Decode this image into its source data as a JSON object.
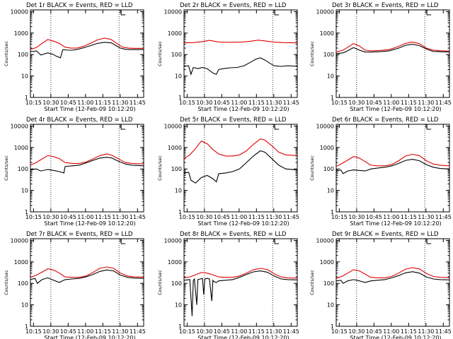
{
  "chart_data": {
    "type": "line",
    "figure": "3x3 grid of detector count-rate time series",
    "title_template": "BLACK = Events, RED = LLD",
    "xlabel": "Start Time (12-Feb-09 10:12:20)",
    "ylabel": "Counts/sec",
    "xticks": [
      "10:15",
      "10:30",
      "10:45",
      "11:00",
      "11:15",
      "11:30",
      "11:45"
    ],
    "xlim_minutes_after_10_12_20": [
      0,
      98
    ],
    "yscale": "log",
    "ylim": [
      1,
      12000
    ],
    "yticks": [
      "1",
      "10",
      "100",
      "1000",
      "10000"
    ],
    "vertical_dotted_lines": [
      "10:30",
      "11:29"
    ],
    "colors": {
      "events": "#000000",
      "lld": "#e00000"
    },
    "series_names": [
      "Events",
      "LLD"
    ],
    "panels": [
      {
        "name": "Det 1r",
        "title": "Det 1r BLACK = Events, RED = LLD",
        "events": {
          "t": [
            0,
            4,
            5,
            9,
            15,
            20,
            22,
            26,
            28,
            32,
            36,
            40,
            45,
            52,
            58,
            64,
            70,
            74,
            78,
            82,
            86,
            90,
            98
          ],
          "y": [
            140,
            140,
            150,
            95,
            120,
            100,
            85,
            70,
            170,
            160,
            160,
            170,
            200,
            260,
            330,
            370,
            350,
            260,
            200,
            175,
            170,
            170,
            170
          ]
        },
        "lld": {
          "t": [
            0,
            5,
            10,
            15,
            20,
            25,
            30,
            35,
            40,
            45,
            52,
            58,
            64,
            70,
            75,
            80,
            85,
            90,
            98
          ],
          "y": [
            175,
            210,
            330,
            500,
            420,
            330,
            220,
            200,
            200,
            230,
            330,
            480,
            580,
            500,
            320,
            220,
            200,
            195,
            195
          ]
        }
      },
      {
        "name": "Det 2r",
        "title": "Det 2r BLACK = Events, RED = LLD",
        "events": {
          "t": [
            0,
            4,
            6,
            8,
            12,
            16,
            20,
            24,
            26,
            28,
            30,
            34,
            40,
            46,
            52,
            58,
            62,
            66,
            70,
            74,
            78,
            84,
            90,
            98
          ],
          "y": [
            28,
            30,
            12,
            25,
            22,
            25,
            22,
            15,
            13,
            12,
            20,
            22,
            24,
            25,
            30,
            45,
            60,
            70,
            55,
            40,
            30,
            28,
            30,
            28
          ]
        },
        "lld": {
          "t": [
            0,
            8,
            16,
            22,
            30,
            40,
            50,
            58,
            64,
            70,
            78,
            86,
            98
          ],
          "y": [
            350,
            360,
            400,
            460,
            380,
            370,
            380,
            420,
            470,
            430,
            380,
            360,
            350
          ]
        }
      },
      {
        "name": "Det 3r",
        "title": "Det 3r BLACK = Events, RED = LLD",
        "events": {
          "t": [
            0,
            6,
            10,
            15,
            20,
            25,
            30,
            38,
            46,
            54,
            60,
            66,
            72,
            78,
            84,
            90,
            98
          ],
          "y": [
            110,
            120,
            150,
            210,
            160,
            130,
            130,
            135,
            150,
            200,
            270,
            300,
            260,
            180,
            140,
            135,
            130
          ]
        },
        "lld": {
          "t": [
            0,
            6,
            10,
            15,
            20,
            25,
            30,
            38,
            46,
            54,
            60,
            66,
            72,
            78,
            84,
            90,
            98
          ],
          "y": [
            130,
            160,
            220,
            320,
            250,
            160,
            150,
            155,
            170,
            240,
            330,
            380,
            320,
            200,
            160,
            150,
            145
          ]
        }
      },
      {
        "name": "Det 4r",
        "title": "Det 4r BLACK = Events, RED = LLD",
        "events": {
          "t": [
            0,
            5,
            9,
            15,
            20,
            25,
            29,
            30,
            36,
            42,
            48,
            54,
            60,
            66,
            70,
            76,
            82,
            88,
            98
          ],
          "y": [
            90,
            100,
            80,
            95,
            85,
            75,
            65,
            130,
            140,
            150,
            190,
            250,
            320,
            350,
            330,
            230,
            170,
            150,
            140
          ]
        },
        "lld": {
          "t": [
            0,
            5,
            10,
            15,
            20,
            25,
            30,
            36,
            42,
            48,
            54,
            60,
            66,
            70,
            76,
            82,
            88,
            98
          ],
          "y": [
            150,
            200,
            290,
            420,
            380,
            300,
            200,
            180,
            180,
            210,
            290,
            420,
            500,
            440,
            300,
            200,
            180,
            170
          ]
        }
      },
      {
        "name": "Det 5r",
        "title": "Det 5r BLACK = Events, RED = LLD",
        "events": {
          "t": [
            0,
            4,
            6,
            10,
            15,
            20,
            25,
            28,
            30,
            36,
            42,
            48,
            54,
            60,
            66,
            70,
            76,
            82,
            88,
            98
          ],
          "y": [
            65,
            70,
            30,
            22,
            40,
            50,
            35,
            25,
            60,
            65,
            75,
            100,
            200,
            400,
            700,
            600,
            300,
            150,
            100,
            90
          ]
        },
        "lld": {
          "t": [
            0,
            5,
            10,
            15,
            20,
            25,
            30,
            36,
            42,
            48,
            54,
            60,
            66,
            70,
            76,
            82,
            88,
            98
          ],
          "y": [
            300,
            450,
            900,
            2000,
            1500,
            800,
            500,
            400,
            400,
            450,
            700,
            1400,
            2500,
            2200,
            1200,
            600,
            450,
            420
          ]
        }
      },
      {
        "name": "Det 6r",
        "title": "Det 6r BLACK = Events, RED = LLD",
        "events": {
          "t": [
            0,
            4,
            6,
            10,
            15,
            20,
            25,
            30,
            36,
            42,
            48,
            54,
            60,
            66,
            72,
            78,
            84,
            90,
            98
          ],
          "y": [
            80,
            90,
            60,
            80,
            90,
            85,
            80,
            100,
            110,
            120,
            140,
            180,
            250,
            280,
            240,
            160,
            120,
            105,
            100
          ]
        },
        "lld": {
          "t": [
            0,
            5,
            10,
            15,
            20,
            25,
            30,
            36,
            42,
            48,
            54,
            60,
            66,
            72,
            78,
            84,
            90,
            98
          ],
          "y": [
            130,
            180,
            260,
            380,
            320,
            220,
            150,
            140,
            140,
            160,
            240,
            400,
            480,
            420,
            240,
            170,
            150,
            140
          ]
        }
      },
      {
        "name": "Det 7r",
        "title": "Det 7r BLACK = Events, RED = LLD",
        "events": {
          "t": [
            0,
            4,
            6,
            10,
            15,
            20,
            25,
            30,
            36,
            42,
            48,
            54,
            60,
            66,
            72,
            78,
            84,
            90,
            98
          ],
          "y": [
            150,
            170,
            100,
            150,
            180,
            140,
            110,
            150,
            160,
            170,
            200,
            260,
            360,
            420,
            380,
            240,
            190,
            175,
            170
          ]
        },
        "lld": {
          "t": [
            0,
            5,
            10,
            15,
            20,
            25,
            30,
            36,
            42,
            48,
            54,
            60,
            66,
            72,
            78,
            84,
            90,
            98
          ],
          "y": [
            190,
            240,
            330,
            480,
            420,
            300,
            200,
            190,
            190,
            220,
            320,
            500,
            580,
            500,
            300,
            220,
            200,
            195
          ]
        }
      },
      {
        "name": "Det 8r",
        "title": "Det 8r BLACK = Events, RED = LLD",
        "events": {
          "t": [
            0,
            5,
            7,
            8,
            9,
            11,
            12,
            14,
            16,
            17,
            18,
            20,
            22,
            24,
            25,
            26,
            28,
            30,
            36,
            42,
            48,
            54,
            60,
            66,
            72,
            78,
            84,
            90,
            98
          ],
          "y": [
            140,
            150,
            3,
            140,
            160,
            10,
            150,
            160,
            170,
            30,
            160,
            170,
            160,
            15,
            140,
            120,
            110,
            130,
            140,
            150,
            190,
            260,
            340,
            380,
            330,
            220,
            160,
            150,
            145
          ]
        },
        "lld": {
          "t": [
            0,
            5,
            10,
            15,
            20,
            25,
            30,
            36,
            42,
            48,
            54,
            60,
            66,
            72,
            78,
            84,
            90,
            98
          ],
          "y": [
            180,
            200,
            250,
            320,
            300,
            250,
            200,
            190,
            190,
            220,
            300,
            430,
            500,
            440,
            280,
            200,
            180,
            175
          ]
        }
      },
      {
        "name": "Det 9r",
        "title": "Det 9r BLACK = Events, RED = LLD",
        "events": {
          "t": [
            0,
            4,
            6,
            10,
            15,
            20,
            25,
            30,
            36,
            42,
            48,
            54,
            60,
            66,
            72,
            78,
            84,
            90,
            98
          ],
          "y": [
            130,
            140,
            100,
            130,
            150,
            130,
            110,
            130,
            140,
            150,
            180,
            230,
            310,
            350,
            300,
            200,
            160,
            150,
            145
          ]
        },
        "lld": {
          "t": [
            0,
            5,
            10,
            15,
            20,
            25,
            30,
            36,
            42,
            48,
            54,
            60,
            66,
            72,
            78,
            84,
            90,
            98
          ],
          "y": [
            170,
            210,
            300,
            430,
            380,
            270,
            190,
            180,
            180,
            210,
            300,
            460,
            540,
            470,
            290,
            210,
            190,
            185
          ]
        }
      }
    ]
  }
}
